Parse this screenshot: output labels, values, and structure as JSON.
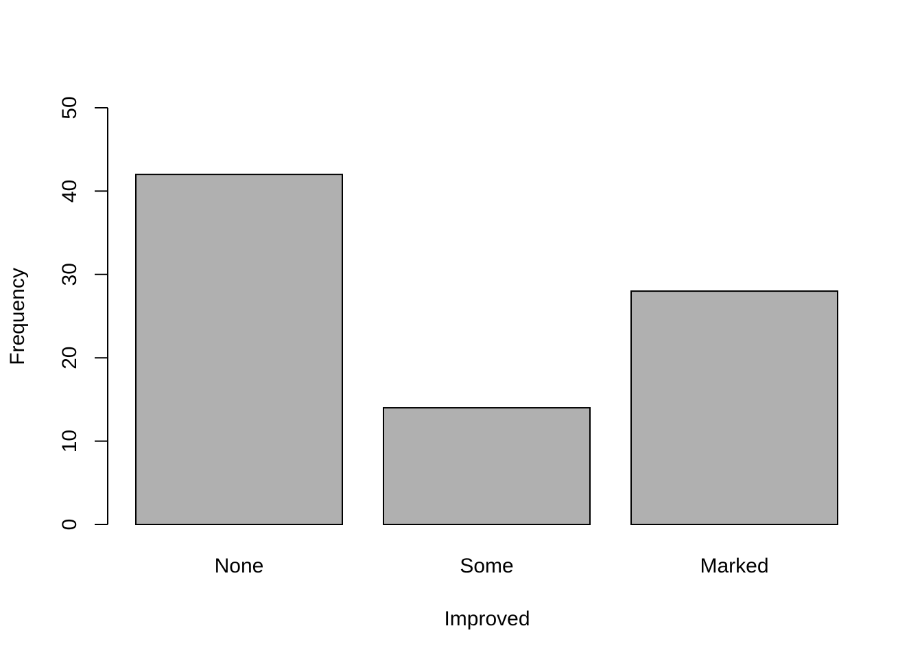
{
  "chart_data": {
    "type": "bar",
    "categories": [
      "None",
      "Some",
      "Marked"
    ],
    "values": [
      42,
      14,
      28
    ],
    "xlabel": "Improved",
    "ylabel": "Frequency",
    "ylim": [
      0,
      50
    ],
    "yticks": [
      "0",
      "10",
      "20",
      "30",
      "40",
      "50"
    ],
    "bar_color": "#b0b0b0",
    "bar_border_color": "#000000",
    "grid": false,
    "legend": "none"
  }
}
